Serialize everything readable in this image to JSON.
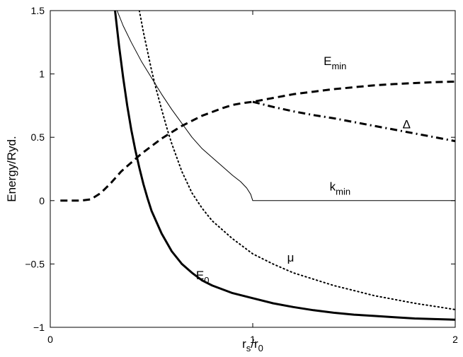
{
  "chart_data": {
    "type": "line",
    "title": "",
    "xlabel": {
      "main": "r",
      "sub1": "s",
      "slash": "/r",
      "sub2": "0"
    },
    "ylabel": "Energy/Ryd.",
    "xlim": [
      0,
      2
    ],
    "ylim": [
      -1,
      1.5
    ],
    "grid": false,
    "xticks": [
      0,
      1,
      2
    ],
    "xtick_labels": [
      "0",
      "1",
      "2"
    ],
    "yticks": [
      -1,
      -0.5,
      0,
      0.5,
      1,
      1.5
    ],
    "ytick_labels": [
      "−1",
      "−0.5",
      "0",
      "0.5",
      "1",
      "1.5"
    ],
    "series": [
      {
        "id": "E0",
        "style": "solid-thick",
        "color": "#000000",
        "x": [
          0.32,
          0.34,
          0.36,
          0.38,
          0.4,
          0.42,
          0.44,
          0.46,
          0.48,
          0.5,
          0.55,
          0.6,
          0.65,
          0.7,
          0.75,
          0.8,
          0.9,
          1.0,
          1.1,
          1.2,
          1.3,
          1.4,
          1.5,
          1.6,
          1.7,
          1.8,
          1.9,
          2.0
        ],
        "y": [
          1.5,
          1.22,
          0.97,
          0.75,
          0.56,
          0.4,
          0.26,
          0.13,
          0.02,
          -0.08,
          -0.26,
          -0.4,
          -0.5,
          -0.57,
          -0.63,
          -0.67,
          -0.73,
          -0.77,
          -0.81,
          -0.84,
          -0.865,
          -0.885,
          -0.9,
          -0.91,
          -0.92,
          -0.93,
          -0.935,
          -0.94
        ]
      },
      {
        "id": "mu",
        "style": "dotted",
        "color": "#000000",
        "x": [
          0.44,
          0.46,
          0.48,
          0.5,
          0.52,
          0.55,
          0.58,
          0.6,
          0.65,
          0.7,
          0.75,
          0.8,
          0.9,
          1.0,
          1.1,
          1.2,
          1.3,
          1.4,
          1.5,
          1.6,
          1.7,
          1.8,
          1.9,
          2.0
        ],
        "y": [
          1.5,
          1.33,
          1.18,
          1.03,
          0.9,
          0.72,
          0.55,
          0.45,
          0.23,
          0.06,
          -0.06,
          -0.16,
          -0.3,
          -0.42,
          -0.5,
          -0.57,
          -0.62,
          -0.67,
          -0.71,
          -0.75,
          -0.78,
          -0.81,
          -0.835,
          -0.86
        ]
      },
      {
        "id": "kmin",
        "style": "solid-thin",
        "color": "#000000",
        "x": [
          0.33,
          0.36,
          0.4,
          0.45,
          0.5,
          0.55,
          0.6,
          0.65,
          0.7,
          0.75,
          0.8,
          0.85,
          0.9,
          0.94,
          0.97,
          0.99,
          1.0,
          1.2,
          1.5,
          2.0
        ],
        "y": [
          1.5,
          1.38,
          1.25,
          1.1,
          0.97,
          0.84,
          0.72,
          0.61,
          0.5,
          0.41,
          0.34,
          0.27,
          0.2,
          0.15,
          0.1,
          0.05,
          0.0,
          0.0,
          0.0,
          0.0
        ]
      },
      {
        "id": "Emin",
        "style": "dashed-thick",
        "color": "#000000",
        "x": [
          0.05,
          0.1,
          0.15,
          0.2,
          0.25,
          0.3,
          0.35,
          0.4,
          0.45,
          0.5,
          0.55,
          0.6,
          0.65,
          0.7,
          0.75,
          0.8,
          0.85,
          0.9,
          0.95,
          1.0,
          1.1,
          1.2,
          1.3,
          1.4,
          1.5,
          1.6,
          1.7,
          1.8,
          1.9,
          2.0
        ],
        "y": [
          0.0,
          0.0,
          0.0,
          0.01,
          0.06,
          0.14,
          0.23,
          0.3,
          0.37,
          0.43,
          0.49,
          0.54,
          0.59,
          0.63,
          0.67,
          0.7,
          0.73,
          0.755,
          0.77,
          0.78,
          0.81,
          0.84,
          0.86,
          0.88,
          0.895,
          0.91,
          0.92,
          0.928,
          0.935,
          0.94
        ]
      },
      {
        "id": "Delta",
        "style": "dashdot-thick",
        "color": "#000000",
        "x": [
          1.0,
          1.1,
          1.2,
          1.3,
          1.4,
          1.5,
          1.6,
          1.7,
          1.8,
          1.9,
          2.0
        ],
        "y": [
          0.78,
          0.74,
          0.705,
          0.675,
          0.65,
          0.62,
          0.59,
          0.56,
          0.53,
          0.5,
          0.47
        ]
      }
    ],
    "annotations": [
      {
        "id": "E0",
        "main": "E",
        "sub": "0",
        "x": 0.72,
        "y": -0.62
      },
      {
        "id": "mu",
        "main": "μ",
        "sub": "",
        "x": 1.17,
        "y": -0.48
      },
      {
        "id": "kmin",
        "main": "k",
        "sub": "min",
        "x": 1.38,
        "y": 0.08
      },
      {
        "id": "Emin",
        "main": "E",
        "sub": "min",
        "x": 1.35,
        "y": 1.07
      },
      {
        "id": "Delta",
        "main": "Δ",
        "sub": "",
        "x": 1.74,
        "y": 0.57
      }
    ]
  }
}
